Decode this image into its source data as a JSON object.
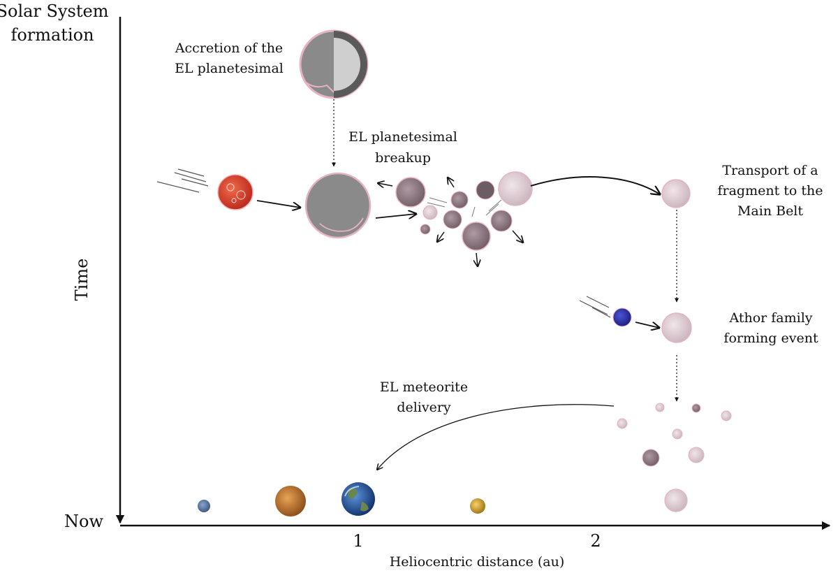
{
  "axes": {
    "y_top_label_line1": "Solar System",
    "y_top_label_line2": "formation",
    "y_bottom_label": "Now",
    "y_title": "Time",
    "x_title": "Heliocentric distance (au)",
    "x_ticks": [
      "1",
      "2"
    ]
  },
  "stages": {
    "accretion_line1": "Accretion of the",
    "accretion_line2": "EL planetesimal",
    "breakup_line1": "EL planetesimal",
    "breakup_line2": "breakup",
    "transport_line1": "Transport of a",
    "transport_line2": "fragment to the",
    "transport_line3": "Main Belt",
    "athor_line1": "Athor family",
    "athor_line2": "forming event",
    "delivery_line1": "EL meteorite",
    "delivery_line2": "delivery"
  },
  "colors": {
    "grey_body": "#8a8a8a",
    "pink_rim": "#e7b3c3",
    "fragment": "#d9c9cf",
    "impactor_red": "#d83a24",
    "impactor_blue": "#2b2fa8",
    "earth_blue": "#2a5da8",
    "venus_orange": "#c7782a",
    "mercury_blue": "#5a78a8",
    "mars_gold": "#d9a21a"
  },
  "planets": [
    "mercury",
    "venus",
    "earth",
    "mars"
  ]
}
